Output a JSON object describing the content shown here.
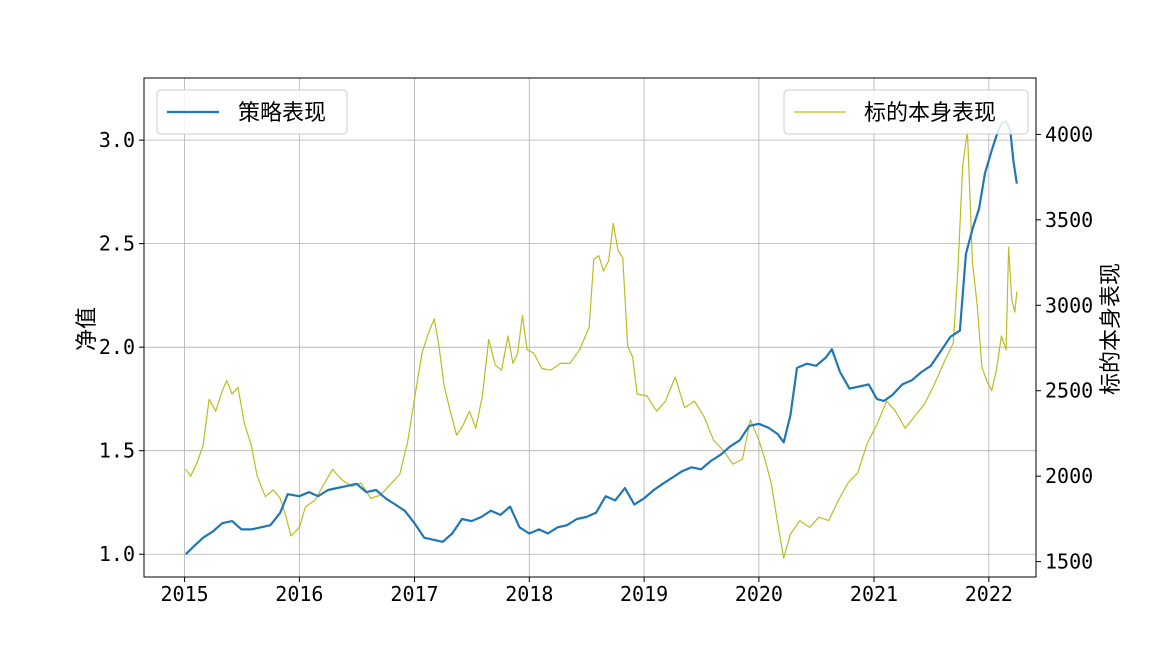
{
  "chart_data": {
    "type": "line",
    "x_axis": {
      "type": "date",
      "range": [
        "2014-08-25",
        "2022-05-31"
      ],
      "ticks": [
        "2015",
        "2016",
        "2017",
        "2018",
        "2019",
        "2020",
        "2021",
        "2022"
      ]
    },
    "y_left": {
      "label": "净值",
      "range": [
        0.89,
        3.3
      ],
      "ticks": [
        "1.0",
        "1.5",
        "2.0",
        "2.5",
        "3.0"
      ]
    },
    "y_right": {
      "label": "标的本身表现",
      "range": [
        1410,
        4330
      ],
      "ticks": [
        "1500",
        "2000",
        "2500",
        "3000",
        "3500",
        "4000"
      ]
    },
    "grid": true,
    "series": [
      {
        "name": "策略表现",
        "axis": "left",
        "color": "#1f77b4",
        "legend_position": "upper-left",
        "points": [
          [
            "2015-01-05",
            1.0
          ],
          [
            "2015-02-01",
            1.04
          ],
          [
            "2015-03-01",
            1.08
          ],
          [
            "2015-04-01",
            1.11
          ],
          [
            "2015-05-01",
            1.15
          ],
          [
            "2015-06-01",
            1.16
          ],
          [
            "2015-07-01",
            1.12
          ],
          [
            "2015-08-01",
            1.12
          ],
          [
            "2015-09-01",
            1.13
          ],
          [
            "2015-10-01",
            1.14
          ],
          [
            "2015-11-01",
            1.2
          ],
          [
            "2015-11-25",
            1.29
          ],
          [
            "2016-01-01",
            1.28
          ],
          [
            "2016-02-01",
            1.3
          ],
          [
            "2016-03-01",
            1.28
          ],
          [
            "2016-04-01",
            1.31
          ],
          [
            "2016-05-01",
            1.32
          ],
          [
            "2016-06-01",
            1.33
          ],
          [
            "2016-07-01",
            1.34
          ],
          [
            "2016-08-01",
            1.3
          ],
          [
            "2016-09-01",
            1.31
          ],
          [
            "2016-10-01",
            1.27
          ],
          [
            "2016-11-01",
            1.24
          ],
          [
            "2016-12-01",
            1.21
          ],
          [
            "2017-01-01",
            1.15
          ],
          [
            "2017-02-01",
            1.08
          ],
          [
            "2017-03-01",
            1.07
          ],
          [
            "2017-04-01",
            1.06
          ],
          [
            "2017-05-01",
            1.1
          ],
          [
            "2017-06-01",
            1.17
          ],
          [
            "2017-07-01",
            1.16
          ],
          [
            "2017-08-01",
            1.18
          ],
          [
            "2017-09-01",
            1.21
          ],
          [
            "2017-10-01",
            1.19
          ],
          [
            "2017-11-01",
            1.23
          ],
          [
            "2017-12-01",
            1.13
          ],
          [
            "2018-01-01",
            1.1
          ],
          [
            "2018-02-01",
            1.12
          ],
          [
            "2018-03-01",
            1.1
          ],
          [
            "2018-04-01",
            1.13
          ],
          [
            "2018-05-01",
            1.14
          ],
          [
            "2018-06-01",
            1.17
          ],
          [
            "2018-07-01",
            1.18
          ],
          [
            "2018-08-01",
            1.2
          ],
          [
            "2018-09-01",
            1.28
          ],
          [
            "2018-10-01",
            1.26
          ],
          [
            "2018-11-01",
            1.32
          ],
          [
            "2018-12-01",
            1.24
          ],
          [
            "2019-01-01",
            1.27
          ],
          [
            "2019-02-01",
            1.31
          ],
          [
            "2019-03-01",
            1.34
          ],
          [
            "2019-04-01",
            1.37
          ],
          [
            "2019-05-01",
            1.4
          ],
          [
            "2019-06-01",
            1.42
          ],
          [
            "2019-07-01",
            1.41
          ],
          [
            "2019-08-01",
            1.45
          ],
          [
            "2019-09-01",
            1.48
          ],
          [
            "2019-10-01",
            1.52
          ],
          [
            "2019-11-01",
            1.55
          ],
          [
            "2019-12-01",
            1.62
          ],
          [
            "2020-01-01",
            1.63
          ],
          [
            "2020-02-01",
            1.61
          ],
          [
            "2020-03-01",
            1.58
          ],
          [
            "2020-03-20",
            1.54
          ],
          [
            "2020-04-10",
            1.67
          ],
          [
            "2020-05-01",
            1.9
          ],
          [
            "2020-06-01",
            1.92
          ],
          [
            "2020-07-01",
            1.91
          ],
          [
            "2020-08-01",
            1.95
          ],
          [
            "2020-08-20",
            1.99
          ],
          [
            "2020-09-15",
            1.88
          ],
          [
            "2020-10-15",
            1.8
          ],
          [
            "2020-11-15",
            1.81
          ],
          [
            "2020-12-15",
            1.82
          ],
          [
            "2021-01-10",
            1.75
          ],
          [
            "2021-02-01",
            1.74
          ],
          [
            "2021-03-01",
            1.77
          ],
          [
            "2021-04-01",
            1.82
          ],
          [
            "2021-05-01",
            1.84
          ],
          [
            "2021-06-01",
            1.88
          ],
          [
            "2021-07-01",
            1.91
          ],
          [
            "2021-08-01",
            1.98
          ],
          [
            "2021-09-01",
            2.05
          ],
          [
            "2021-10-01",
            2.08
          ],
          [
            "2021-10-20",
            2.45
          ],
          [
            "2021-11-10",
            2.57
          ],
          [
            "2021-12-01",
            2.67
          ],
          [
            "2021-12-20",
            2.84
          ],
          [
            "2022-01-10",
            2.95
          ],
          [
            "2022-01-25",
            3.02
          ],
          [
            "2022-02-10",
            3.08
          ],
          [
            "2022-02-25",
            3.09
          ],
          [
            "2022-03-10",
            3.05
          ],
          [
            "2022-03-20",
            2.9
          ],
          [
            "2022-03-31",
            2.79
          ]
        ]
      },
      {
        "name": "标的本身表现",
        "axis": "right",
        "color": "#bcbd22",
        "legend_position": "upper-right",
        "points": [
          [
            "2015-01-05",
            2040
          ],
          [
            "2015-01-20",
            2000
          ],
          [
            "2015-02-10",
            2080
          ],
          [
            "2015-03-01",
            2180
          ],
          [
            "2015-03-20",
            2450
          ],
          [
            "2015-04-10",
            2380
          ],
          [
            "2015-05-01",
            2500
          ],
          [
            "2015-05-15",
            2560
          ],
          [
            "2015-06-01",
            2480
          ],
          [
            "2015-06-20",
            2520
          ],
          [
            "2015-07-10",
            2310
          ],
          [
            "2015-08-01",
            2180
          ],
          [
            "2015-08-20",
            2000
          ],
          [
            "2015-09-15",
            1880
          ],
          [
            "2015-10-10",
            1920
          ],
          [
            "2015-11-01",
            1870
          ],
          [
            "2015-11-20",
            1760
          ],
          [
            "2015-12-05",
            1650
          ],
          [
            "2016-01-01",
            1700
          ],
          [
            "2016-01-20",
            1820
          ],
          [
            "2016-02-20",
            1860
          ],
          [
            "2016-03-15",
            1940
          ],
          [
            "2016-04-15",
            2040
          ],
          [
            "2016-05-15",
            1980
          ],
          [
            "2016-06-15",
            1940
          ],
          [
            "2016-07-15",
            1960
          ],
          [
            "2016-08-15",
            1870
          ],
          [
            "2016-09-15",
            1890
          ],
          [
            "2016-10-15",
            1950
          ],
          [
            "2016-11-15",
            2010
          ],
          [
            "2016-12-10",
            2200
          ],
          [
            "2017-01-05",
            2500
          ],
          [
            "2017-01-25",
            2720
          ],
          [
            "2017-02-15",
            2840
          ],
          [
            "2017-03-05",
            2920
          ],
          [
            "2017-03-20",
            2760
          ],
          [
            "2017-04-05",
            2530
          ],
          [
            "2017-04-25",
            2380
          ],
          [
            "2017-05-15",
            2240
          ],
          [
            "2017-06-05",
            2300
          ],
          [
            "2017-06-25",
            2380
          ],
          [
            "2017-07-15",
            2280
          ],
          [
            "2017-08-05",
            2470
          ],
          [
            "2017-08-25",
            2800
          ],
          [
            "2017-09-15",
            2650
          ],
          [
            "2017-10-05",
            2620
          ],
          [
            "2017-10-25",
            2820
          ],
          [
            "2017-11-10",
            2660
          ],
          [
            "2017-11-25",
            2720
          ],
          [
            "2017-12-10",
            2940
          ],
          [
            "2017-12-25",
            2740
          ],
          [
            "2018-01-15",
            2720
          ],
          [
            "2018-02-10",
            2630
          ],
          [
            "2018-03-10",
            2620
          ],
          [
            "2018-04-10",
            2660
          ],
          [
            "2018-05-10",
            2660
          ],
          [
            "2018-06-10",
            2740
          ],
          [
            "2018-07-10",
            2870
          ],
          [
            "2018-07-25",
            3270
          ],
          [
            "2018-08-10",
            3290
          ],
          [
            "2018-08-25",
            3200
          ],
          [
            "2018-09-10",
            3260
          ],
          [
            "2018-09-25",
            3480
          ],
          [
            "2018-10-10",
            3320
          ],
          [
            "2018-10-25",
            3280
          ],
          [
            "2018-11-10",
            2760
          ],
          [
            "2018-11-25",
            2700
          ],
          [
            "2018-12-10",
            2480
          ],
          [
            "2019-01-10",
            2470
          ],
          [
            "2019-02-10",
            2380
          ],
          [
            "2019-03-10",
            2440
          ],
          [
            "2019-04-10",
            2580
          ],
          [
            "2019-05-10",
            2400
          ],
          [
            "2019-06-10",
            2440
          ],
          [
            "2019-07-10",
            2350
          ],
          [
            "2019-08-10",
            2210
          ],
          [
            "2019-09-10",
            2150
          ],
          [
            "2019-10-10",
            2070
          ],
          [
            "2019-11-10",
            2100
          ],
          [
            "2019-12-05",
            2330
          ],
          [
            "2020-01-01",
            2210
          ],
          [
            "2020-01-20",
            2100
          ],
          [
            "2020-02-10",
            1950
          ],
          [
            "2020-03-01",
            1720
          ],
          [
            "2020-03-20",
            1520
          ],
          [
            "2020-04-10",
            1660
          ],
          [
            "2020-05-10",
            1740
          ],
          [
            "2020-06-10",
            1700
          ],
          [
            "2020-07-10",
            1760
          ],
          [
            "2020-08-10",
            1740
          ],
          [
            "2020-09-10",
            1860
          ],
          [
            "2020-10-10",
            1960
          ],
          [
            "2020-11-10",
            2020
          ],
          [
            "2020-12-10",
            2190
          ],
          [
            "2021-01-10",
            2300
          ],
          [
            "2021-02-10",
            2440
          ],
          [
            "2021-03-10",
            2380
          ],
          [
            "2021-04-10",
            2280
          ],
          [
            "2021-05-10",
            2350
          ],
          [
            "2021-06-10",
            2420
          ],
          [
            "2021-07-10",
            2530
          ],
          [
            "2021-08-10",
            2660
          ],
          [
            "2021-09-10",
            2780
          ],
          [
            "2021-09-25",
            3220
          ],
          [
            "2021-10-10",
            3820
          ],
          [
            "2021-10-25",
            4020
          ],
          [
            "2021-11-10",
            3250
          ],
          [
            "2021-11-25",
            3000
          ],
          [
            "2021-12-10",
            2640
          ],
          [
            "2021-12-25",
            2560
          ],
          [
            "2022-01-10",
            2500
          ],
          [
            "2022-01-25",
            2620
          ],
          [
            "2022-02-10",
            2820
          ],
          [
            "2022-02-25",
            2740
          ],
          [
            "2022-03-05",
            3340
          ],
          [
            "2022-03-15",
            3030
          ],
          [
            "2022-03-25",
            2960
          ],
          [
            "2022-03-31",
            3080
          ]
        ]
      }
    ]
  }
}
